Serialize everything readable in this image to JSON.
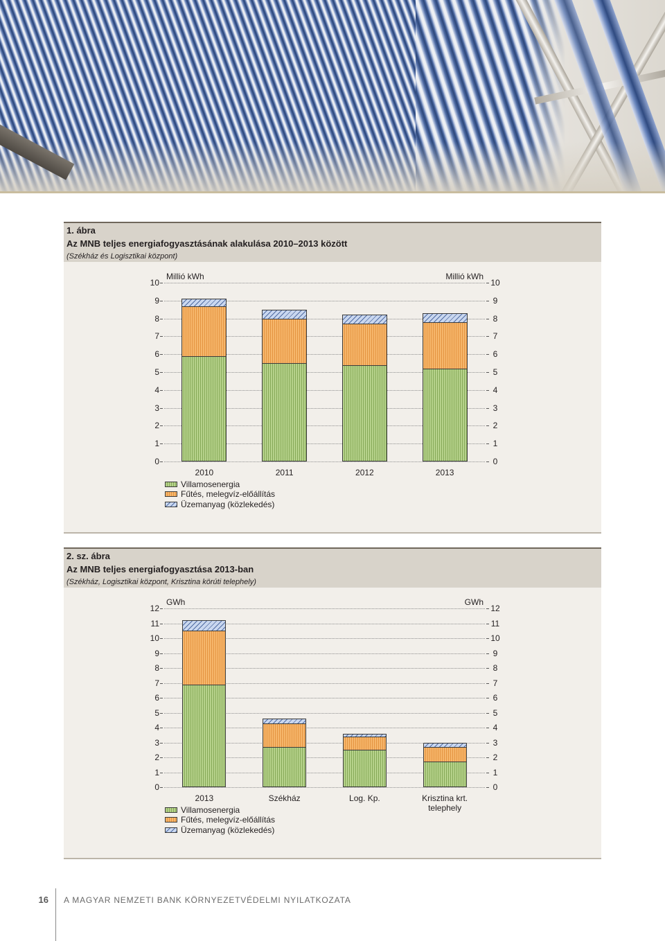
{
  "theme": {
    "header_bg": "#d8d3ca",
    "panel_bg": "#f2efea",
    "rule": "#6f675b",
    "text": "#231f20"
  },
  "chart_data": [
    {
      "type": "bar",
      "stacked": true,
      "figure_label": "1. ábra",
      "title": "Az MNB teljes energiafogyasztásának alakulása 2010–2013 között",
      "subtitle": "(Székház és Logisztikai központ)",
      "ylabel": "Millió kWh",
      "ylabel_right": "Millió kWh",
      "categories": [
        "2010",
        "2011",
        "2012",
        "2013"
      ],
      "series": [
        {
          "name": "Villamosenergia",
          "color": "#b6d28b",
          "values": [
            5.9,
            5.5,
            5.4,
            5.2
          ]
        },
        {
          "name": "Fűtés, melegvíz-előállítás",
          "color": "#f6b66b",
          "values": [
            2.8,
            2.5,
            2.3,
            2.6
          ]
        },
        {
          "name": "Üzemanyag (közlekedés)",
          "color": "#c9d7ef",
          "values": [
            0.4,
            0.5,
            0.5,
            0.5
          ]
        }
      ],
      "ylim": [
        0,
        10
      ],
      "yticks": [
        0,
        1,
        2,
        3,
        4,
        5,
        6,
        7,
        8,
        9,
        10
      ],
      "grid": true,
      "legend": "bottom-left"
    },
    {
      "type": "bar",
      "stacked": true,
      "figure_label": "2. sz. ábra",
      "title": "Az MNB teljes energiafogyasztása 2013-ban",
      "subtitle": "(Székház, Logisztikai központ, Krisztina körúti telephely)",
      "ylabel": "GWh",
      "ylabel_right": "GWh",
      "categories": [
        "2013",
        "Székház",
        "Log. Kp.",
        "Krisztina krt. telephely"
      ],
      "series": [
        {
          "name": "Villamosenergia",
          "color": "#b6d28b",
          "values": [
            6.9,
            2.7,
            2.5,
            1.7
          ]
        },
        {
          "name": "Fűtés, melegvíz-előállítás",
          "color": "#f6b66b",
          "values": [
            3.6,
            1.6,
            0.9,
            1.0
          ]
        },
        {
          "name": "Üzemanyag (közlekedés)",
          "color": "#c9d7ef",
          "values": [
            0.7,
            0.3,
            0.2,
            0.3
          ]
        }
      ],
      "ylim": [
        0,
        12
      ],
      "yticks": [
        0,
        1,
        2,
        3,
        4,
        5,
        6,
        7,
        8,
        9,
        10,
        11,
        12
      ],
      "grid": true,
      "legend": "bottom-left"
    }
  ],
  "footer": {
    "page_number": "16",
    "running_title": "A MAGYAR NEMZETI BANK KÖRNYEZETVÉDELMI NYILATKOZATA"
  }
}
